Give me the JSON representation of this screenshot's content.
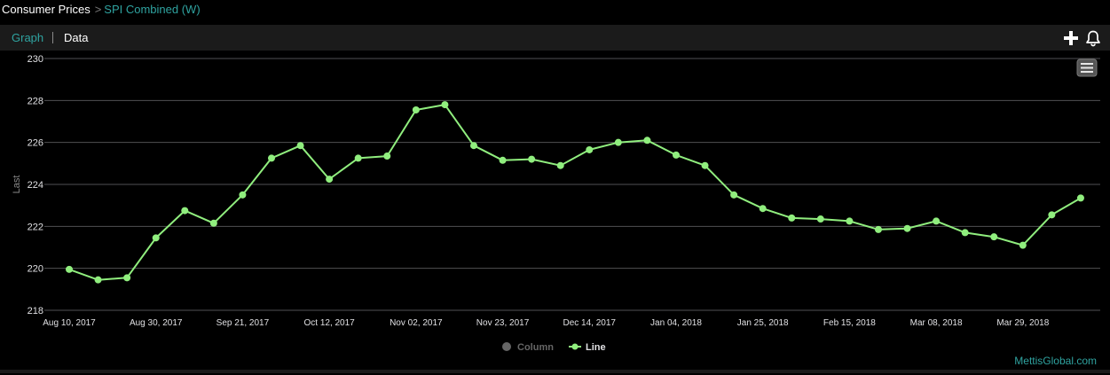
{
  "breadcrumb": {
    "root": "Consumer Prices",
    "separator": ">",
    "current": "SPI Combined (W)"
  },
  "tabs": [
    {
      "label": "Graph",
      "active": true
    },
    {
      "label": "Data",
      "active": false
    }
  ],
  "toolbar": {
    "add_icon": "plus-icon",
    "alert_icon": "bell-icon"
  },
  "menu_icon": "hamburger-menu-icon",
  "credit": "MettisGlobal.com",
  "colors": {
    "background": "#000000",
    "accent": "#2fa3a0",
    "line": "#90ee7e",
    "grid": "#505053"
  },
  "chart_data": {
    "type": "line",
    "title": "",
    "xlabel": "",
    "ylabel": "Last",
    "ylim": [
      218,
      230
    ],
    "yticks": [
      218,
      220,
      222,
      224,
      226,
      228,
      230
    ],
    "grid": true,
    "legend_position": "bottom-center",
    "xtick_labels": [
      "Aug 10, 2017",
      "Aug 30, 2017",
      "Sep 21, 2017",
      "Oct 12, 2017",
      "Nov 02, 2017",
      "Nov 23, 2017",
      "Dec 14, 2017",
      "Jan 04, 2018",
      "Jan 25, 2018",
      "Feb 15, 2018",
      "Mar 08, 2018",
      "Mar 29, 2018"
    ],
    "series": [
      {
        "name": "Column",
        "visible": false,
        "values": []
      },
      {
        "name": "Line",
        "visible": true,
        "x": [
          "2017-08-10",
          "2017-08-17",
          "2017-08-24",
          "2017-08-31",
          "2017-09-07",
          "2017-09-14",
          "2017-09-21",
          "2017-09-28",
          "2017-10-05",
          "2017-10-12",
          "2017-10-19",
          "2017-10-26",
          "2017-11-02",
          "2017-11-09",
          "2017-11-16",
          "2017-11-23",
          "2017-11-30",
          "2017-12-07",
          "2017-12-14",
          "2017-12-21",
          "2017-12-28",
          "2018-01-04",
          "2018-01-11",
          "2018-01-18",
          "2018-01-25",
          "2018-02-01",
          "2018-02-08",
          "2018-02-15",
          "2018-02-22",
          "2018-03-01",
          "2018-03-08",
          "2018-03-15",
          "2018-03-22",
          "2018-03-29",
          "2018-04-05",
          "2018-04-12"
        ],
        "values": [
          219.95,
          219.45,
          219.55,
          221.45,
          222.75,
          222.15,
          223.5,
          225.25,
          225.85,
          224.25,
          225.25,
          225.35,
          227.55,
          227.8,
          225.85,
          225.15,
          225.2,
          224.9,
          225.65,
          226.0,
          226.1,
          225.4,
          224.9,
          223.5,
          222.85,
          222.4,
          222.35,
          222.25,
          221.85,
          221.9,
          222.25,
          221.7,
          221.5,
          221.1,
          222.55,
          223.35
        ]
      }
    ]
  }
}
